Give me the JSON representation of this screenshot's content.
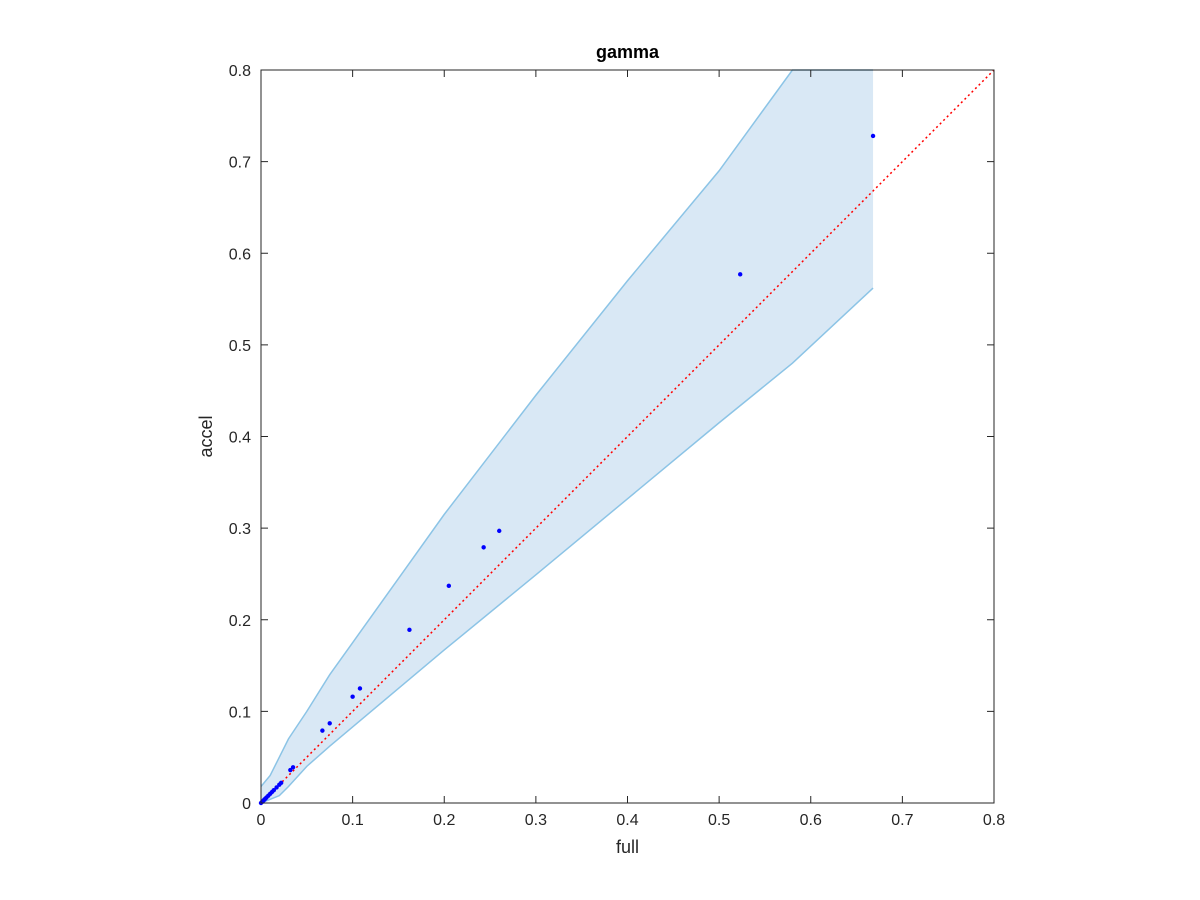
{
  "chart_data": {
    "type": "scatter",
    "title": "gamma",
    "xlabel": "full",
    "ylabel": "accel",
    "xlim": [
      0,
      0.8
    ],
    "ylim": [
      0,
      0.8
    ],
    "xticks": [
      0,
      0.1,
      0.2,
      0.3,
      0.4,
      0.5,
      0.6,
      0.7,
      0.8
    ],
    "yticks": [
      0,
      0.1,
      0.2,
      0.3,
      0.4,
      0.5,
      0.6,
      0.7,
      0.8
    ],
    "xtick_labels": [
      "0",
      "0.1",
      "0.2",
      "0.3",
      "0.4",
      "0.5",
      "0.6",
      "0.7",
      "0.8"
    ],
    "ytick_labels": [
      "0",
      "0.1",
      "0.2",
      "0.3",
      "0.4",
      "0.5",
      "0.6",
      "0.7",
      "0.8"
    ],
    "grid": false,
    "points": {
      "x": [
        0.0,
        0.001,
        0.002,
        0.003,
        0.004,
        0.005,
        0.006,
        0.008,
        0.01,
        0.012,
        0.014,
        0.017,
        0.02,
        0.022,
        0.032,
        0.035,
        0.067,
        0.075,
        0.1,
        0.108,
        0.162,
        0.205,
        0.243,
        0.26,
        0.523,
        0.668
      ],
      "y": [
        0.0,
        0.001,
        0.002,
        0.003,
        0.004,
        0.005,
        0.006,
        0.008,
        0.01,
        0.012,
        0.014,
        0.017,
        0.02,
        0.022,
        0.036,
        0.039,
        0.079,
        0.087,
        0.116,
        0.125,
        0.189,
        0.237,
        0.279,
        0.297,
        0.577,
        0.728
      ],
      "color": "#0000ff"
    },
    "band": {
      "x": [
        0,
        0.01,
        0.02,
        0.03,
        0.05,
        0.075,
        0.1,
        0.15,
        0.2,
        0.3,
        0.4,
        0.5,
        0.58,
        0.668
      ],
      "upper": [
        0.018,
        0.03,
        0.05,
        0.07,
        0.1,
        0.14,
        0.175,
        0.245,
        0.315,
        0.445,
        0.57,
        0.69,
        0.8,
        0.8
      ],
      "lower": [
        0,
        0.004,
        0.008,
        0.018,
        0.04,
        0.062,
        0.083,
        0.125,
        0.167,
        0.249,
        0.332,
        0.415,
        0.48,
        0.562
      ],
      "fill_color": "#d9e8f5",
      "line_color": "#8cc4e6"
    },
    "reference_line": {
      "x": [
        0,
        0.8
      ],
      "y": [
        0,
        0.8
      ],
      "style": "dotted",
      "color": "#ff0000"
    }
  }
}
